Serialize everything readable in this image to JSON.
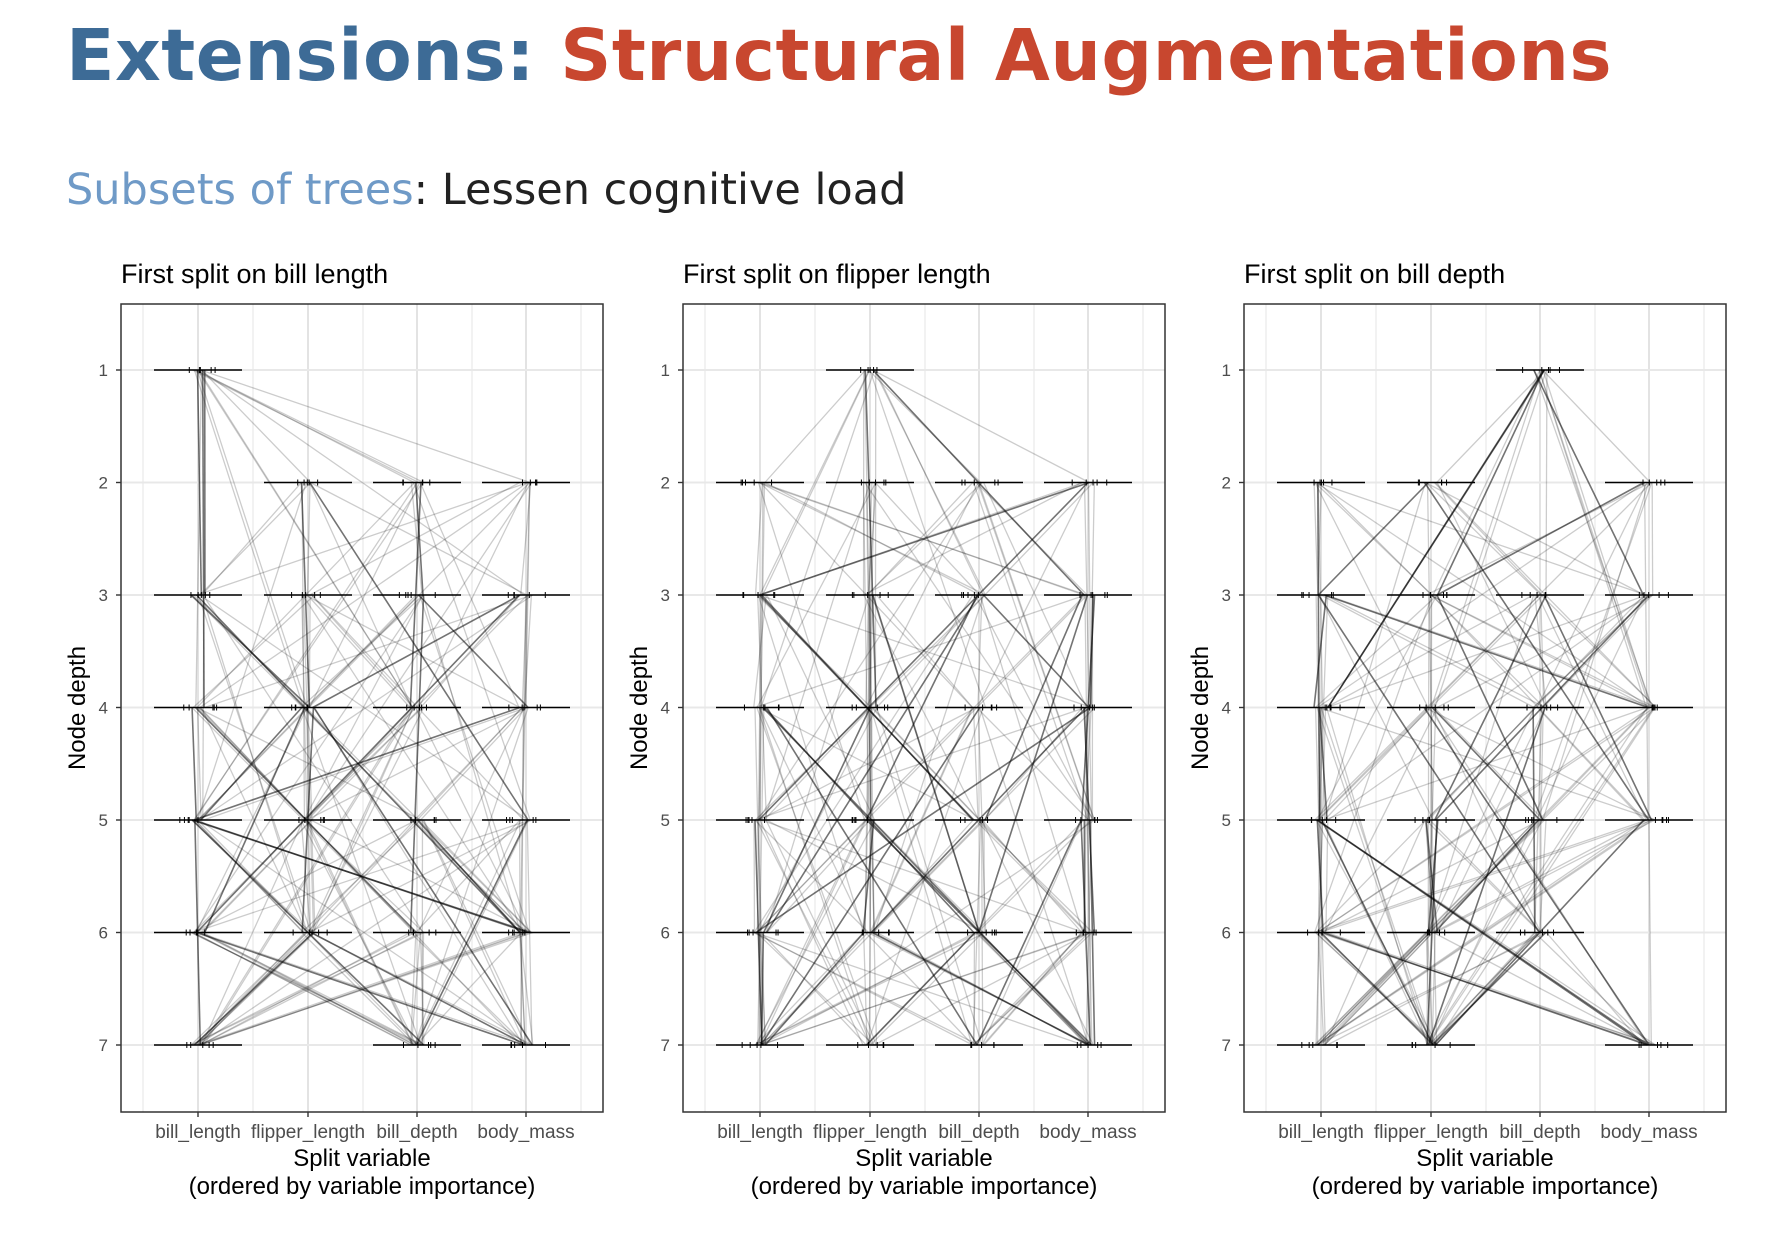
{
  "slide": {
    "title_prefix": "Extensions: ",
    "title_highlight": "Structural Augmentations",
    "subtitle_highlight": "Subsets of trees",
    "subtitle_rest": ": Lessen cognitive load",
    "colors": {
      "title_prefix": "#3d6b96",
      "title_highlight": "#c8472f",
      "subtitle_highlight": "#6f9ac7",
      "text": "#222222"
    }
  },
  "chart_data": [
    {
      "type": "parallel-coordinates",
      "title": "First split on bill length",
      "xlabel": "Split variable",
      "xlabel_sub": "(ordered by variable importance)",
      "ylabel": "Node depth",
      "categories": [
        "bill_length",
        "flipper_length",
        "bill_depth",
        "body_mass"
      ],
      "y_ticks": [
        1,
        2,
        3,
        4,
        5,
        6,
        7
      ],
      "y_reversed": true,
      "grid": true,
      "present_nodes": [
        {
          "var": "bill_length",
          "depth": 1
        },
        {
          "var": "flipper_length",
          "depth": 2
        },
        {
          "var": "bill_depth",
          "depth": 2
        },
        {
          "var": "body_mass",
          "depth": 2
        },
        {
          "var": "bill_length",
          "depth": 3
        },
        {
          "var": "flipper_length",
          "depth": 3
        },
        {
          "var": "bill_depth",
          "depth": 3
        },
        {
          "var": "body_mass",
          "depth": 3
        },
        {
          "var": "bill_length",
          "depth": 4
        },
        {
          "var": "flipper_length",
          "depth": 4
        },
        {
          "var": "bill_depth",
          "depth": 4
        },
        {
          "var": "body_mass",
          "depth": 4
        },
        {
          "var": "bill_length",
          "depth": 5
        },
        {
          "var": "flipper_length",
          "depth": 5
        },
        {
          "var": "bill_depth",
          "depth": 5
        },
        {
          "var": "body_mass",
          "depth": 5
        },
        {
          "var": "bill_length",
          "depth": 6
        },
        {
          "var": "flipper_length",
          "depth": 6
        },
        {
          "var": "bill_depth",
          "depth": 6
        },
        {
          "var": "body_mass",
          "depth": 6
        },
        {
          "var": "bill_length",
          "depth": 7
        },
        {
          "var": "bill_depth",
          "depth": 7
        },
        {
          "var": "body_mass",
          "depth": 7
        }
      ]
    },
    {
      "type": "parallel-coordinates",
      "title": "First split on flipper length",
      "xlabel": "Split variable",
      "xlabel_sub": "(ordered by variable importance)",
      "ylabel": "Node depth",
      "categories": [
        "bill_length",
        "flipper_length",
        "bill_depth",
        "body_mass"
      ],
      "y_ticks": [
        1,
        2,
        3,
        4,
        5,
        6,
        7
      ],
      "y_reversed": true,
      "grid": true,
      "present_nodes": [
        {
          "var": "flipper_length",
          "depth": 1
        },
        {
          "var": "bill_length",
          "depth": 2
        },
        {
          "var": "flipper_length",
          "depth": 2
        },
        {
          "var": "bill_depth",
          "depth": 2
        },
        {
          "var": "body_mass",
          "depth": 2
        },
        {
          "var": "bill_length",
          "depth": 3
        },
        {
          "var": "flipper_length",
          "depth": 3
        },
        {
          "var": "bill_depth",
          "depth": 3
        },
        {
          "var": "body_mass",
          "depth": 3
        },
        {
          "var": "bill_length",
          "depth": 4
        },
        {
          "var": "flipper_length",
          "depth": 4
        },
        {
          "var": "bill_depth",
          "depth": 4
        },
        {
          "var": "body_mass",
          "depth": 4
        },
        {
          "var": "bill_length",
          "depth": 5
        },
        {
          "var": "flipper_length",
          "depth": 5
        },
        {
          "var": "bill_depth",
          "depth": 5
        },
        {
          "var": "body_mass",
          "depth": 5
        },
        {
          "var": "bill_length",
          "depth": 6
        },
        {
          "var": "flipper_length",
          "depth": 6
        },
        {
          "var": "bill_depth",
          "depth": 6
        },
        {
          "var": "body_mass",
          "depth": 6
        },
        {
          "var": "bill_length",
          "depth": 7
        },
        {
          "var": "flipper_length",
          "depth": 7
        },
        {
          "var": "bill_depth",
          "depth": 7
        },
        {
          "var": "body_mass",
          "depth": 7
        }
      ]
    },
    {
      "type": "parallel-coordinates",
      "title": "First split on bill depth",
      "xlabel": "Split variable",
      "xlabel_sub": "(ordered by variable importance)",
      "ylabel": "Node depth",
      "categories": [
        "bill_length",
        "flipper_length",
        "bill_depth",
        "body_mass"
      ],
      "y_ticks": [
        1,
        2,
        3,
        4,
        5,
        6,
        7
      ],
      "y_reversed": true,
      "grid": true,
      "present_nodes": [
        {
          "var": "bill_depth",
          "depth": 1
        },
        {
          "var": "bill_length",
          "depth": 2
        },
        {
          "var": "flipper_length",
          "depth": 2
        },
        {
          "var": "body_mass",
          "depth": 2
        },
        {
          "var": "bill_length",
          "depth": 3
        },
        {
          "var": "flipper_length",
          "depth": 3
        },
        {
          "var": "bill_depth",
          "depth": 3
        },
        {
          "var": "body_mass",
          "depth": 3
        },
        {
          "var": "bill_length",
          "depth": 4
        },
        {
          "var": "flipper_length",
          "depth": 4
        },
        {
          "var": "bill_depth",
          "depth": 4
        },
        {
          "var": "body_mass",
          "depth": 4
        },
        {
          "var": "bill_length",
          "depth": 5
        },
        {
          "var": "flipper_length",
          "depth": 5
        },
        {
          "var": "bill_depth",
          "depth": 5
        },
        {
          "var": "body_mass",
          "depth": 5
        },
        {
          "var": "bill_length",
          "depth": 6
        },
        {
          "var": "flipper_length",
          "depth": 6
        },
        {
          "var": "bill_depth",
          "depth": 6
        },
        {
          "var": "bill_length",
          "depth": 7
        },
        {
          "var": "flipper_length",
          "depth": 7
        },
        {
          "var": "body_mass",
          "depth": 7
        }
      ]
    }
  ]
}
